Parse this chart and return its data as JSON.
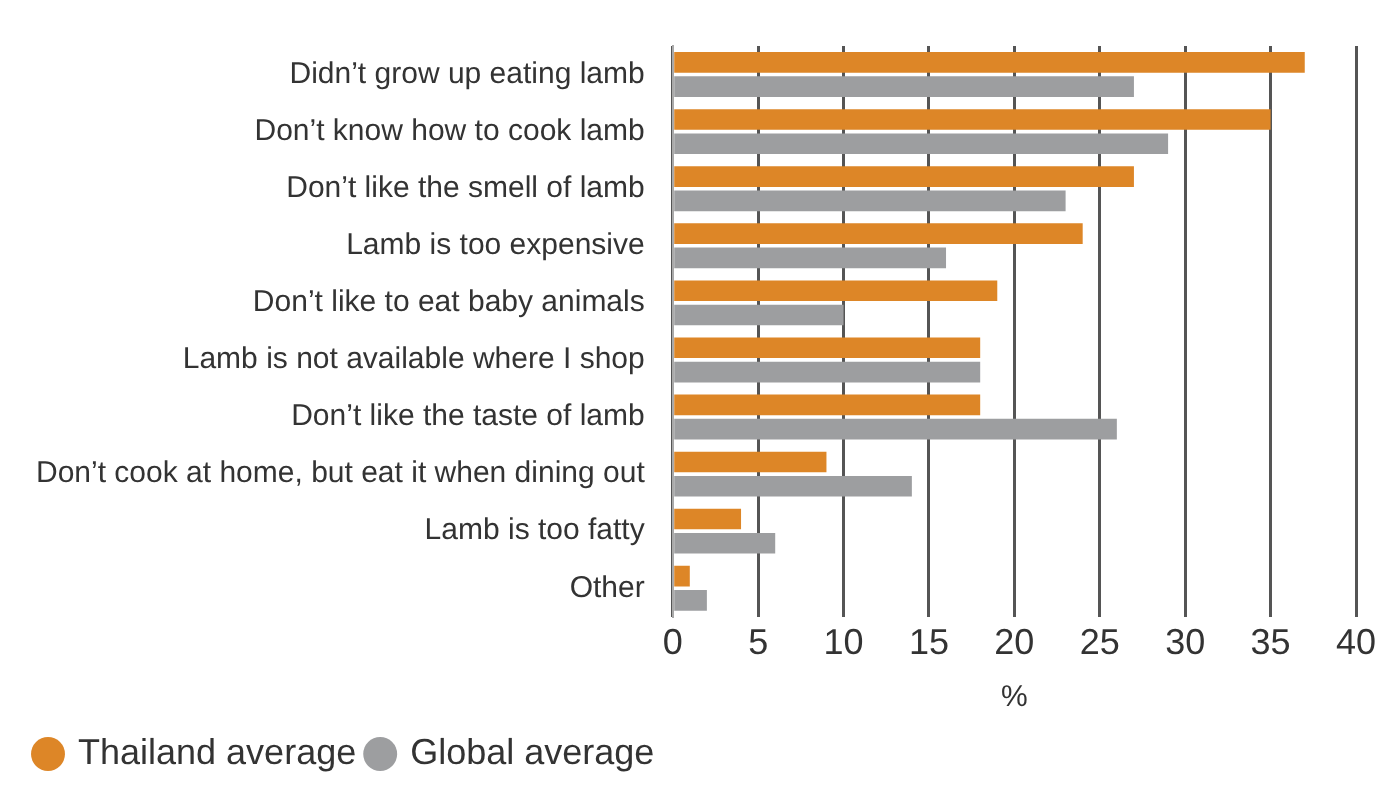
{
  "chart_data": {
    "type": "bar",
    "orientation": "horizontal",
    "xlabel": "%",
    "categories": [
      "Didn’t grow up eating lamb",
      "Don’t know how to cook lamb",
      "Don’t like the smell of lamb",
      "Lamb is too expensive",
      "Don’t like to eat baby animals",
      "Lamb is not available where I shop",
      "Don’t like the taste of lamb",
      "Don’t cook at home, but eat it when dining out",
      "Lamb is too fatty",
      "Other"
    ],
    "series": [
      {
        "name": "Thailand average",
        "color": "#dd8627",
        "values": [
          37,
          35,
          27,
          24,
          19,
          18,
          18,
          9,
          4,
          1
        ]
      },
      {
        "name": "Global average",
        "color": "#9d9ea0",
        "values": [
          27,
          29,
          23,
          16,
          10,
          18,
          26,
          14,
          6,
          2
        ]
      }
    ],
    "xlim": [
      0,
      40
    ],
    "xticks": [
      0,
      5,
      10,
      15,
      20,
      25,
      30,
      35,
      40
    ],
    "grid": "x",
    "legend": "bottom left"
  }
}
